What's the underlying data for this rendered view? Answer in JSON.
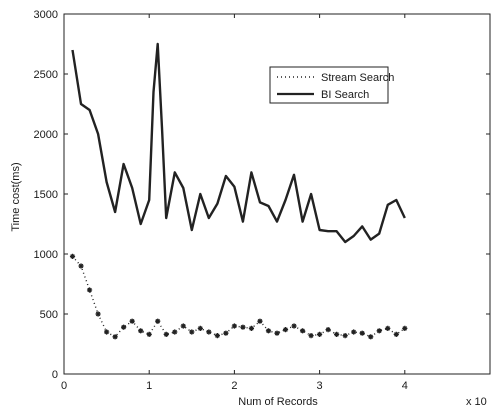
{
  "chart_data": {
    "type": "line",
    "xlabel": "Num of Records",
    "ylabel": "Time cost(ms)",
    "x_multiplier_label": "x 10",
    "xlim": [
      0,
      5
    ],
    "ylim": [
      0,
      3000
    ],
    "x_ticks": [
      0,
      1,
      2,
      3,
      4
    ],
    "y_ticks": [
      0,
      500,
      1000,
      1500,
      2000,
      2500,
      3000
    ],
    "grid": false,
    "legend_position": "top-right",
    "series": [
      {
        "name": "Stream Search",
        "style": "dotted-star",
        "color": "#222222",
        "x": [
          0.1,
          0.2,
          0.3,
          0.4,
          0.5,
          0.6,
          0.7,
          0.8,
          0.9,
          1.0,
          1.1,
          1.2,
          1.3,
          1.4,
          1.5,
          1.6,
          1.7,
          1.8,
          1.9,
          2.0,
          2.1,
          2.2,
          2.3,
          2.4,
          2.5,
          2.6,
          2.7,
          2.8,
          2.9,
          3.0,
          3.1,
          3.2,
          3.3,
          3.4,
          3.5,
          3.6,
          3.7,
          3.8,
          3.9,
          4.0
        ],
        "y": [
          980,
          900,
          700,
          500,
          350,
          310,
          390,
          440,
          360,
          330,
          440,
          330,
          350,
          400,
          350,
          380,
          350,
          320,
          340,
          400,
          390,
          380,
          440,
          360,
          340,
          370,
          400,
          360,
          320,
          330,
          370,
          330,
          320,
          350,
          340,
          310,
          360,
          380,
          330,
          380
        ]
      },
      {
        "name": "BI Search",
        "style": "solid-thick",
        "color": "#222222",
        "x": [
          0.1,
          0.2,
          0.3,
          0.4,
          0.5,
          0.6,
          0.7,
          0.8,
          0.9,
          1.0,
          1.05,
          1.1,
          1.15,
          1.2,
          1.3,
          1.4,
          1.5,
          1.6,
          1.7,
          1.8,
          1.9,
          2.0,
          2.1,
          2.2,
          2.3,
          2.4,
          2.5,
          2.6,
          2.7,
          2.8,
          2.9,
          3.0,
          3.1,
          3.2,
          3.3,
          3.4,
          3.5,
          3.6,
          3.7,
          3.8,
          3.9,
          4.0
        ],
        "y": [
          2700,
          2250,
          2200,
          2000,
          1600,
          1350,
          1750,
          1550,
          1250,
          1450,
          2350,
          2750,
          2050,
          1300,
          1680,
          1550,
          1200,
          1500,
          1300,
          1420,
          1650,
          1560,
          1270,
          1680,
          1430,
          1400,
          1270,
          1450,
          1660,
          1270,
          1500,
          1200,
          1190,
          1190,
          1100,
          1150,
          1230,
          1120,
          1170,
          1410,
          1450,
          1300
        ]
      }
    ]
  }
}
